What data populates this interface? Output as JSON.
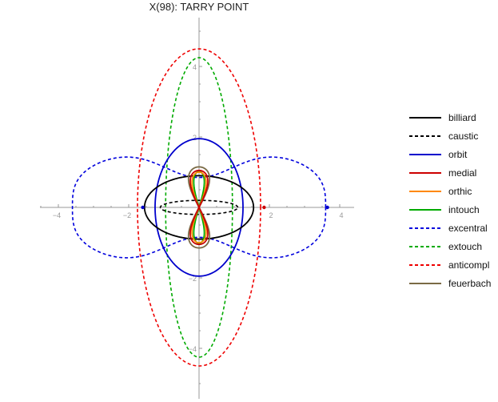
{
  "chart_data": {
    "type": "line",
    "title": "X(98): TARRY POINT",
    "xlabel": "",
    "ylabel": "",
    "xlim": [
      -4.0,
      4.3
    ],
    "ylim": [
      -5.3,
      5.4
    ],
    "x_ticks": [
      -4,
      -2,
      2,
      4
    ],
    "y_ticks": [
      4,
      2,
      -2,
      -4
    ],
    "grid": false,
    "legend_position": "right",
    "series": [
      {
        "name": "billiard",
        "shape": "ellipse",
        "cx": 0,
        "cy": 0,
        "rx": 1.55,
        "ry": 0.9,
        "color": "#000000",
        "dash": "solid"
      },
      {
        "name": "caustic",
        "shape": "ellipse",
        "cx": 0,
        "cy": 0,
        "rx": 1.1,
        "ry": 0.2,
        "color": "#000000",
        "dash": "dashed"
      },
      {
        "name": "orbit",
        "shape": "ellipse",
        "cx": 0,
        "cy": 0,
        "rx": 1.25,
        "ry": 1.95,
        "color": "#0000cc",
        "dash": "solid"
      },
      {
        "name": "medial",
        "shape": "lissajous",
        "ax": 0.25,
        "ay": 1.05,
        "color": "#cc0000",
        "dash": "solid"
      },
      {
        "name": "orthic",
        "shape": "lissajous",
        "ax": 0.2,
        "ay": 1.0,
        "color": "#ff8800",
        "dash": "solid"
      },
      {
        "name": "intouch",
        "shape": "lissajous",
        "ax": 0.15,
        "ay": 1.02,
        "color": "#00aa00",
        "dash": "solid"
      },
      {
        "name": "excentral",
        "shape": "peanut",
        "x": 3.6,
        "y": 1.75,
        "waist": 0.85,
        "color": "#0000dd",
        "dash": "dashed"
      },
      {
        "name": "extouch",
        "shape": "ellipse",
        "cx": 0,
        "cy": 0,
        "rx": 0.95,
        "ry": 4.25,
        "color": "#00aa00",
        "dash": "dashed"
      },
      {
        "name": "anticompl",
        "shape": "ellipse",
        "cx": 0,
        "cy": 0,
        "rx": 1.75,
        "ry": 4.5,
        "color": "#ee0000",
        "dash": "dashed"
      },
      {
        "name": "feuerbach",
        "shape": "lissajous",
        "ax": 0.3,
        "ay": 1.15,
        "color": "#7a6a45",
        "dash": "solid"
      }
    ],
    "markers": [
      {
        "x": -1.6,
        "y": 0,
        "color": "#0000cc"
      },
      {
        "x": 1.85,
        "y": 0,
        "color": "#cc0000"
      },
      {
        "x": 3.65,
        "y": 0,
        "color": "#0000cc"
      }
    ]
  }
}
